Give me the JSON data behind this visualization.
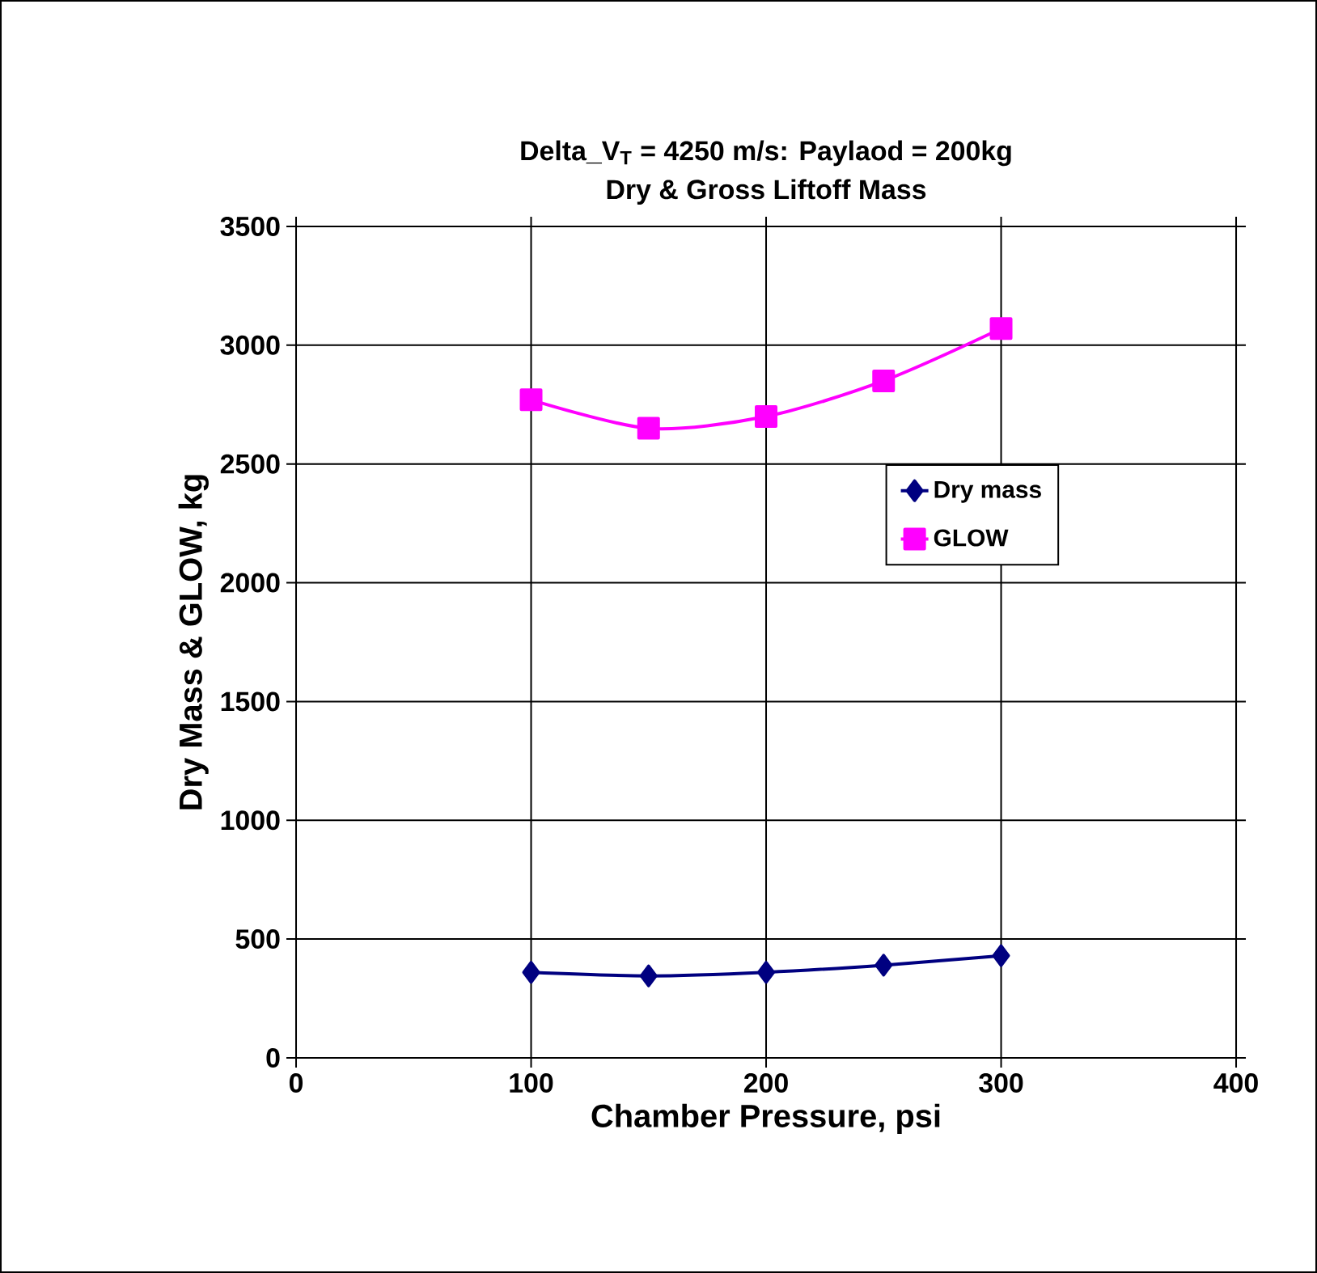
{
  "chart_data": {
    "type": "line",
    "title": "Delta_V$_{T}$ = 4250 m/s: Paylaod = 200kg",
    "subtitle": "Dry & Gross Liftoff Mass",
    "xlabel": "Chamber Pressure, psi",
    "ylabel": "Dry Mass & GLOW, kg",
    "x": [
      100,
      150,
      200,
      250,
      300
    ],
    "series": [
      {
        "name": "Dry mass",
        "color": "#000080",
        "marker": "diamond",
        "values": [
          360,
          345,
          360,
          390,
          430
        ]
      },
      {
        "name": "GLOW",
        "color": "#ff00ff",
        "marker": "square",
        "values": [
          2770,
          2650,
          2700,
          2850,
          3070
        ]
      }
    ],
    "xlim": [
      0,
      400
    ],
    "xticks": [
      0,
      100,
      200,
      300,
      400
    ],
    "ylim": [
      0,
      3500
    ],
    "yticks": [
      0,
      500,
      1000,
      1500,
      2000,
      2500,
      3000,
      3500
    ],
    "grid": true,
    "legend": "right",
    "line_style": "solid"
  }
}
